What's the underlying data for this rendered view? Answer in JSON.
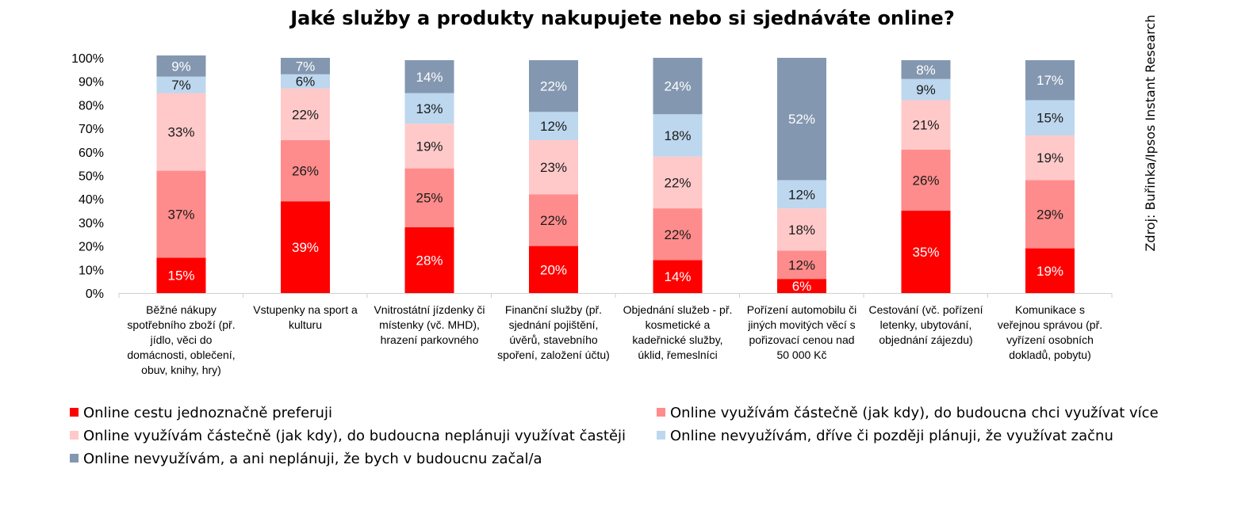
{
  "chart_data": {
    "type": "bar",
    "stacked": true,
    "title": "Jaké služby a produkty nakupujete nebo si sjednáváte online?",
    "source": "Zdroj: Buřinka/Ipsos Instant Research",
    "ylim": [
      0,
      100
    ],
    "yticks": [
      "0%",
      "10%",
      "20%",
      "30%",
      "40%",
      "50%",
      "60%",
      "70%",
      "80%",
      "90%",
      "100%"
    ],
    "categories": [
      [
        "Běžné nákupy",
        "spotřebního zboží (př.",
        "jídlo, věci do",
        "domácnosti, oblečení,",
        "obuv, knihy, hry)"
      ],
      [
        "Vstupenky na sport a",
        "kulturu"
      ],
      [
        "Vnitrostátní jízdenky či",
        "místenky (vč. MHD),",
        "hrazení parkovného"
      ],
      [
        "Finanční služby (př.",
        "sjednání pojištění,",
        "úvěrů, stavebního",
        "spoření, založení účtu)"
      ],
      [
        "Objednání služeb - př.",
        "kosmetické a",
        "kadeřnické služby,",
        "úklid, řemeslníci"
      ],
      [
        "Pořízení automobilu či",
        "jiných movitých věcí s",
        "pořizovací cenou nad",
        "50 000 Kč"
      ],
      [
        "Cestování (vč. pořízení",
        "letenky, ubytování,",
        "objednání zájezdu)"
      ],
      [
        "Komunikace s",
        "veřejnou správou (př.",
        "vyřízení osobních",
        "dokladů, pobytu)"
      ]
    ],
    "series": [
      {
        "name": "Online cestu jednoznačně preferuji",
        "color": "#ff0000",
        "label_color": "#ffffff",
        "values": [
          15,
          39,
          28,
          20,
          14,
          6,
          35,
          19
        ],
        "labels": [
          "15%",
          "39%",
          "28%",
          "20%",
          "14%",
          "6%",
          "35%",
          "19%"
        ]
      },
      {
        "name": "Online využívám částečně (jak kdy), do budoucna chci využívat více",
        "color": "#ff8c8c",
        "label_color": "#1a1a1a",
        "values": [
          37,
          26,
          25,
          22,
          22,
          12,
          26,
          29
        ],
        "labels": [
          "37%",
          "26%",
          "25%",
          "22%",
          "22%",
          "12%",
          "26%",
          "29%"
        ]
      },
      {
        "name": "Online využívám částečně (jak kdy), do budoucna neplánuji využívat častěji",
        "color": "#ffc9c9",
        "label_color": "#1a1a1a",
        "values": [
          33,
          22,
          19,
          23,
          22,
          18,
          21,
          19
        ],
        "labels": [
          "33%",
          "22%",
          "19%",
          "23%",
          "22%",
          "18%",
          "21%",
          "19%"
        ]
      },
      {
        "name": "Online nevyužívám, dříve či později plánuji, že využívat začnu",
        "color": "#bdd7ee",
        "label_color": "#1a1a1a",
        "values": [
          7,
          6,
          13,
          12,
          18,
          12,
          9,
          15
        ],
        "labels": [
          "7%",
          "6%",
          "13%",
          "12%",
          "18%",
          "12%",
          "9%",
          "15%"
        ]
      },
      {
        "name": "Online nevyužívám, a ani neplánuji, že bych v budoucnu začal/a",
        "color": "#8497b0",
        "label_color": "#ffffff",
        "values": [
          9,
          7,
          14,
          22,
          24,
          52,
          8,
          17
        ],
        "labels": [
          "9%",
          "7%",
          "14%",
          "22%",
          "24%",
          "52%",
          "8%",
          "17%"
        ]
      }
    ],
    "legend": "bottom",
    "grid": false
  }
}
